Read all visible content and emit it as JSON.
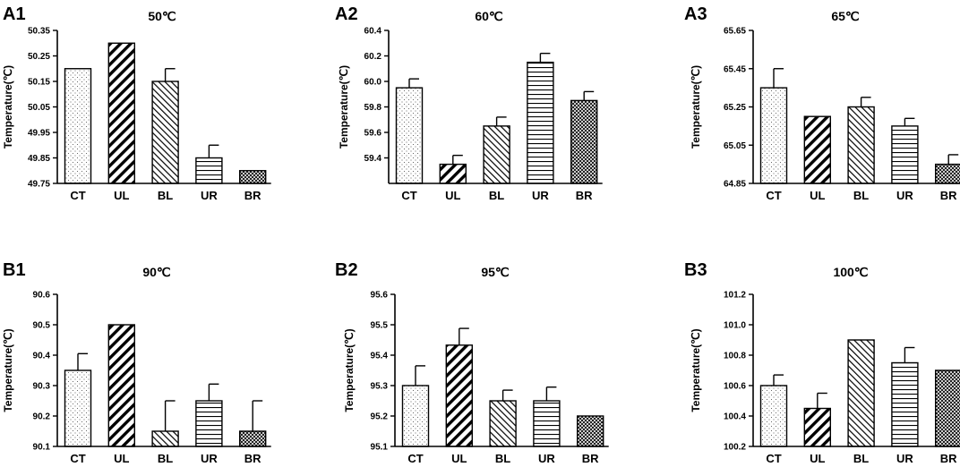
{
  "chart_data": [
    {
      "panel": "A1",
      "type": "bar",
      "title": "50℃",
      "ylabel": "Temperature(℃)",
      "xlabel": "",
      "categories": [
        "CT",
        "UL",
        "BL",
        "UR",
        "BR"
      ],
      "values": [
        50.2,
        50.3,
        50.15,
        49.85,
        49.8
      ],
      "errors": [
        0,
        0,
        0.05,
        0.05,
        0
      ],
      "ylim": [
        49.75,
        50.35
      ],
      "yticks": [
        "49.75",
        "49.85",
        "49.95",
        "50.05",
        "50.15",
        "50.25",
        "50.35"
      ]
    },
    {
      "panel": "A2",
      "type": "bar",
      "title": "60℃",
      "ylabel": "Temperature(℃)",
      "xlabel": "",
      "categories": [
        "CT",
        "UL",
        "BL",
        "UR",
        "BR"
      ],
      "values": [
        59.95,
        59.35,
        59.65,
        60.15,
        59.85
      ],
      "errors": [
        0.07,
        0.07,
        0.07,
        0.07,
        0.07
      ],
      "ylim": [
        59.2,
        60.4
      ],
      "yticks": [
        "59.4",
        "59.6",
        "59.8",
        "60.0",
        "60.2",
        "60.4"
      ]
    },
    {
      "panel": "A3",
      "type": "bar",
      "title": "65℃",
      "ylabel": "Temperature(℃)",
      "xlabel": "",
      "categories": [
        "CT",
        "UL",
        "BL",
        "UR",
        "BR"
      ],
      "values": [
        65.35,
        65.2,
        65.25,
        65.15,
        64.95
      ],
      "errors": [
        0.1,
        0,
        0.05,
        0.04,
        0.05
      ],
      "ylim": [
        64.85,
        65.65
      ],
      "yticks": [
        "64.85",
        "65.05",
        "65.25",
        "65.45",
        "65.65"
      ]
    },
    {
      "panel": "B1",
      "type": "bar",
      "title": "90℃",
      "ylabel": "Temperature(℃)",
      "xlabel": "",
      "categories": [
        "CT",
        "UL",
        "BL",
        "UR",
        "BR"
      ],
      "values": [
        90.35,
        90.5,
        90.15,
        90.25,
        90.15
      ],
      "errors": [
        0.055,
        0,
        0.1,
        0.055,
        0.1
      ],
      "ylim": [
        90.1,
        90.6
      ],
      "yticks": [
        "90.1",
        "90.2",
        "90.3",
        "90.4",
        "90.5",
        "90.6"
      ]
    },
    {
      "panel": "B2",
      "type": "bar",
      "title": "95℃",
      "ylabel": "Temperature(℃)",
      "xlabel": "",
      "categories": [
        "CT",
        "UL",
        "BL",
        "UR",
        "BR"
      ],
      "values": [
        95.3,
        95.433,
        95.25,
        95.25,
        95.2
      ],
      "errors": [
        0.065,
        0.055,
        0.035,
        0.045,
        0
      ],
      "ylim": [
        95.1,
        95.6
      ],
      "yticks": [
        "95.1",
        "95.2",
        "95.3",
        "95.4",
        "95.5",
        "95.6"
      ]
    },
    {
      "panel": "B3",
      "type": "bar",
      "title": "100℃",
      "ylabel": "Temperature(℃)",
      "xlabel": "",
      "categories": [
        "CT",
        "UL",
        "BL",
        "UR",
        "BR"
      ],
      "values": [
        100.6,
        100.45,
        100.9,
        100.75,
        100.7
      ],
      "errors": [
        0.07,
        0.1,
        0,
        0.1,
        0
      ],
      "ylim": [
        100.2,
        101.2
      ],
      "yticks": [
        "100.2",
        "100.4",
        "100.6",
        "100.8",
        "101.0",
        "101.2"
      ]
    }
  ],
  "patterns": [
    "dots",
    "diag-thick",
    "diag-thin",
    "horizontal",
    "crosshatch"
  ],
  "colors": {
    "ink": "#000000",
    "fill": "#ffffff"
  }
}
